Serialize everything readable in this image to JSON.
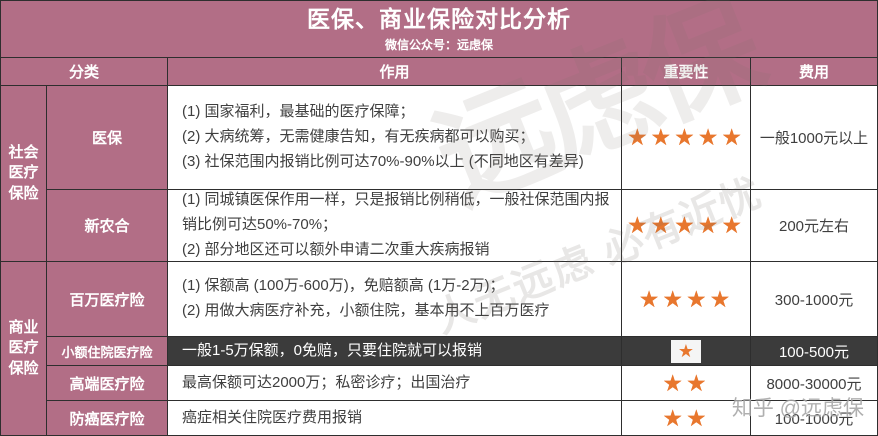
{
  "title": "医保、商业保险对比分析",
  "subtitle": "微信公众号：远虑保",
  "columns": {
    "category": "分类",
    "effect": "作用",
    "importance": "重要性",
    "cost": "费用"
  },
  "groups": {
    "social": "社会\n医疗\n保险",
    "commercial": "商业\n医疗\n保险"
  },
  "rows": [
    {
      "name": "医保",
      "effect": "(1) 国家福利，最基础的医疗保障；\n(2) 大病统筹，无需健康告知，有无疾病都可以购买；\n(3) 社保范围内报销比例可达70%-90%以上 (不同地区有差异)",
      "stars": "★★★★★",
      "cost": "一般1000元以上"
    },
    {
      "name": "新农合",
      "effect": "(1) 同城镇医保作用一样，只是报销比例稍低，一般社保范围内报销比例可达50%-70%；\n(2) 部分地区还可以额外申请二次重大疾病报销",
      "stars": "★★★★★",
      "cost": "200元左右"
    },
    {
      "name": "百万医疗险",
      "effect": "(1) 保额高 (100万-600万)，免赔额高 (1万-2万)；\n(2) 用做大病医疗补充，小额住院，基本用不上百万医疗",
      "stars": "★★★★",
      "cost": "300-1000元"
    },
    {
      "name": "小额住院医疗险",
      "effect": "一般1-5万保额，0免赔，只要住院就可以报销",
      "stars": "★",
      "cost": "100-500元"
    },
    {
      "name": "高端医疗险",
      "effect": "最高保额可达2000万；私密诊疗；出国治疗",
      "stars": "★★",
      "cost": "8000-30000元"
    },
    {
      "name": "防癌医疗险",
      "effect": "癌症相关住院医疗费用报销",
      "stars": "★★",
      "cost": "100-1000元"
    }
  ],
  "watermarks": {
    "big": "远虑保",
    "slogan": "人无远虑 必有近忧",
    "zhihu": "知乎 @远虑保"
  },
  "colors": {
    "mauve": "#b26e86",
    "dark_row": "#3b3b3b",
    "star_orange": "#e8772e",
    "border": "#2e2e2e"
  }
}
